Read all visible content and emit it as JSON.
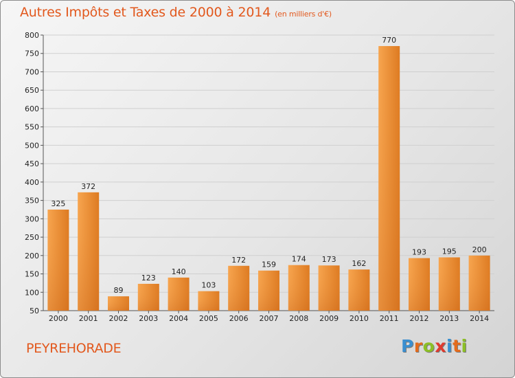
{
  "header": {
    "title": "Autres Impôts et Taxes de 2000 à 2014",
    "unit": "(en milliers d'€)"
  },
  "footer": {
    "commune": "PEYREHORADE",
    "brand_letters": [
      "P",
      "r",
      "o",
      "x",
      "i",
      "t",
      "i"
    ],
    "brand_colors": [
      "#3a8fd0",
      "#e46b1c",
      "#8cbf26",
      "#e03a2e",
      "#3a8fd0",
      "#e46b1c",
      "#8cbf26"
    ]
  },
  "chart_data": {
    "type": "bar",
    "title": "Autres Impôts et Taxes de 2000 à 2014",
    "subtitle": "(en milliers d'€)",
    "xlabel": "",
    "ylabel": "",
    "categories": [
      "2000",
      "2001",
      "2002",
      "2003",
      "2004",
      "2005",
      "2006",
      "2007",
      "2008",
      "2009",
      "2010",
      "2011",
      "2012",
      "2013",
      "2014"
    ],
    "values": [
      325,
      372,
      89,
      123,
      140,
      103,
      172,
      159,
      174,
      173,
      162,
      770,
      193,
      195,
      200
    ],
    "ylim": [
      50,
      800
    ],
    "yticks": [
      50,
      100,
      150,
      200,
      250,
      300,
      350,
      400,
      450,
      500,
      550,
      600,
      650,
      700,
      750,
      800
    ],
    "grid": true,
    "bar_color": "#f0902f",
    "bar_color_dark": "#d9731a"
  }
}
